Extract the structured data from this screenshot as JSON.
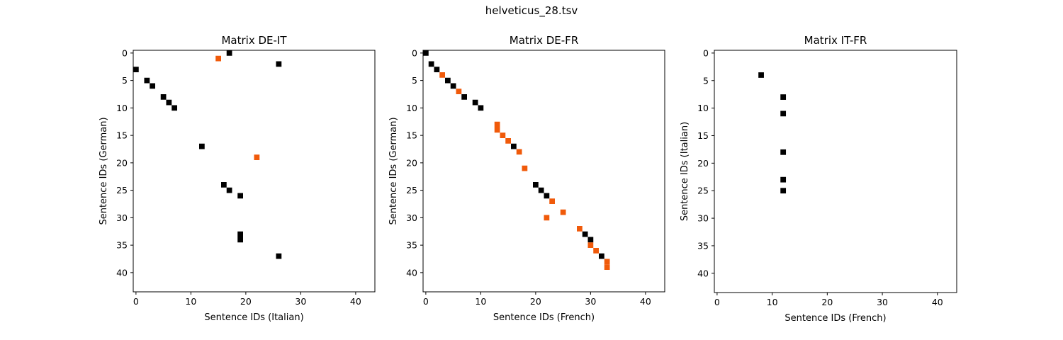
{
  "chart_data": {
    "title": "helveticus_28.tsv",
    "colors": {
      "black": "#000000",
      "orange": "#f05a0a",
      "frame": "#000000",
      "background": "#ffffff"
    },
    "panels": [
      {
        "type": "heatmap",
        "title": "Matrix DE-IT",
        "xlabel": "Sentence IDs (Italian)",
        "ylabel": "Sentence IDs (German)",
        "xlim": [
          -0.5,
          43.5
        ],
        "ylim": [
          43.5,
          -0.5
        ],
        "xticks": [
          0,
          10,
          20,
          30,
          40
        ],
        "yticks": [
          0,
          5,
          10,
          15,
          20,
          25,
          30,
          35,
          40
        ],
        "cells": [
          {
            "x": 17,
            "y": 0,
            "color": "black"
          },
          {
            "x": 15,
            "y": 1,
            "color": "orange"
          },
          {
            "x": 26,
            "y": 2,
            "color": "black"
          },
          {
            "x": 0,
            "y": 3,
            "color": "black"
          },
          {
            "x": 2,
            "y": 5,
            "color": "black"
          },
          {
            "x": 3,
            "y": 6,
            "color": "black"
          },
          {
            "x": 5,
            "y": 8,
            "color": "black"
          },
          {
            "x": 6,
            "y": 9,
            "color": "black"
          },
          {
            "x": 7,
            "y": 10,
            "color": "black"
          },
          {
            "x": 12,
            "y": 17,
            "color": "black"
          },
          {
            "x": 22,
            "y": 19,
            "color": "orange"
          },
          {
            "x": 16,
            "y": 24,
            "color": "black"
          },
          {
            "x": 17,
            "y": 25,
            "color": "black"
          },
          {
            "x": 19,
            "y": 26,
            "color": "black"
          },
          {
            "x": 19,
            "y": 33,
            "color": "black"
          },
          {
            "x": 19,
            "y": 34,
            "color": "black"
          },
          {
            "x": 26,
            "y": 37,
            "color": "black"
          }
        ]
      },
      {
        "type": "heatmap",
        "title": "Matrix DE-FR",
        "xlabel": "Sentence IDs (French)",
        "ylabel": "Sentence IDs (German)",
        "xlim": [
          -0.5,
          43.5
        ],
        "ylim": [
          43.5,
          -0.5
        ],
        "xticks": [
          0,
          10,
          20,
          30,
          40
        ],
        "yticks": [
          0,
          5,
          10,
          15,
          20,
          25,
          30,
          35,
          40
        ],
        "cells": [
          {
            "x": 0,
            "y": 0,
            "color": "black"
          },
          {
            "x": 1,
            "y": 2,
            "color": "black"
          },
          {
            "x": 2,
            "y": 3,
            "color": "black"
          },
          {
            "x": 3,
            "y": 4,
            "color": "orange"
          },
          {
            "x": 4,
            "y": 5,
            "color": "black"
          },
          {
            "x": 5,
            "y": 6,
            "color": "black"
          },
          {
            "x": 6,
            "y": 7,
            "color": "orange"
          },
          {
            "x": 7,
            "y": 8,
            "color": "black"
          },
          {
            "x": 9,
            "y": 9,
            "color": "black"
          },
          {
            "x": 10,
            "y": 10,
            "color": "black"
          },
          {
            "x": 13,
            "y": 13,
            "color": "orange"
          },
          {
            "x": 13,
            "y": 14,
            "color": "orange"
          },
          {
            "x": 14,
            "y": 15,
            "color": "orange"
          },
          {
            "x": 15,
            "y": 16,
            "color": "orange"
          },
          {
            "x": 16,
            "y": 17,
            "color": "black"
          },
          {
            "x": 17,
            "y": 18,
            "color": "orange"
          },
          {
            "x": 18,
            "y": 21,
            "color": "orange"
          },
          {
            "x": 20,
            "y": 24,
            "color": "black"
          },
          {
            "x": 21,
            "y": 25,
            "color": "black"
          },
          {
            "x": 22,
            "y": 26,
            "color": "black"
          },
          {
            "x": 23,
            "y": 27,
            "color": "orange"
          },
          {
            "x": 25,
            "y": 29,
            "color": "orange"
          },
          {
            "x": 22,
            "y": 30,
            "color": "orange"
          },
          {
            "x": 28,
            "y": 32,
            "color": "orange"
          },
          {
            "x": 29,
            "y": 33,
            "color": "black"
          },
          {
            "x": 30,
            "y": 34,
            "color": "black"
          },
          {
            "x": 30,
            "y": 35,
            "color": "orange"
          },
          {
            "x": 31,
            "y": 36,
            "color": "orange"
          },
          {
            "x": 32,
            "y": 37,
            "color": "black"
          },
          {
            "x": 33,
            "y": 38,
            "color": "orange"
          },
          {
            "x": 33,
            "y": 39,
            "color": "orange"
          }
        ]
      },
      {
        "type": "heatmap",
        "title": "Matrix IT-FR",
        "xlabel": "Sentence IDs (French)",
        "ylabel": "Sentence IDs (Italian)",
        "xlim": [
          -0.5,
          43.5
        ],
        "ylim": [
          43.5,
          -0.5
        ],
        "xticks": [
          0,
          10,
          20,
          30,
          40
        ],
        "yticks": [
          0,
          5,
          10,
          15,
          20,
          25,
          30,
          35,
          40
        ],
        "cells": [
          {
            "x": 8,
            "y": 4,
            "color": "black"
          },
          {
            "x": 12,
            "y": 8,
            "color": "black"
          },
          {
            "x": 12,
            "y": 11,
            "color": "black"
          },
          {
            "x": 12,
            "y": 18,
            "color": "black"
          },
          {
            "x": 12,
            "y": 23,
            "color": "black"
          },
          {
            "x": 12,
            "y": 25,
            "color": "black"
          }
        ]
      }
    ]
  }
}
